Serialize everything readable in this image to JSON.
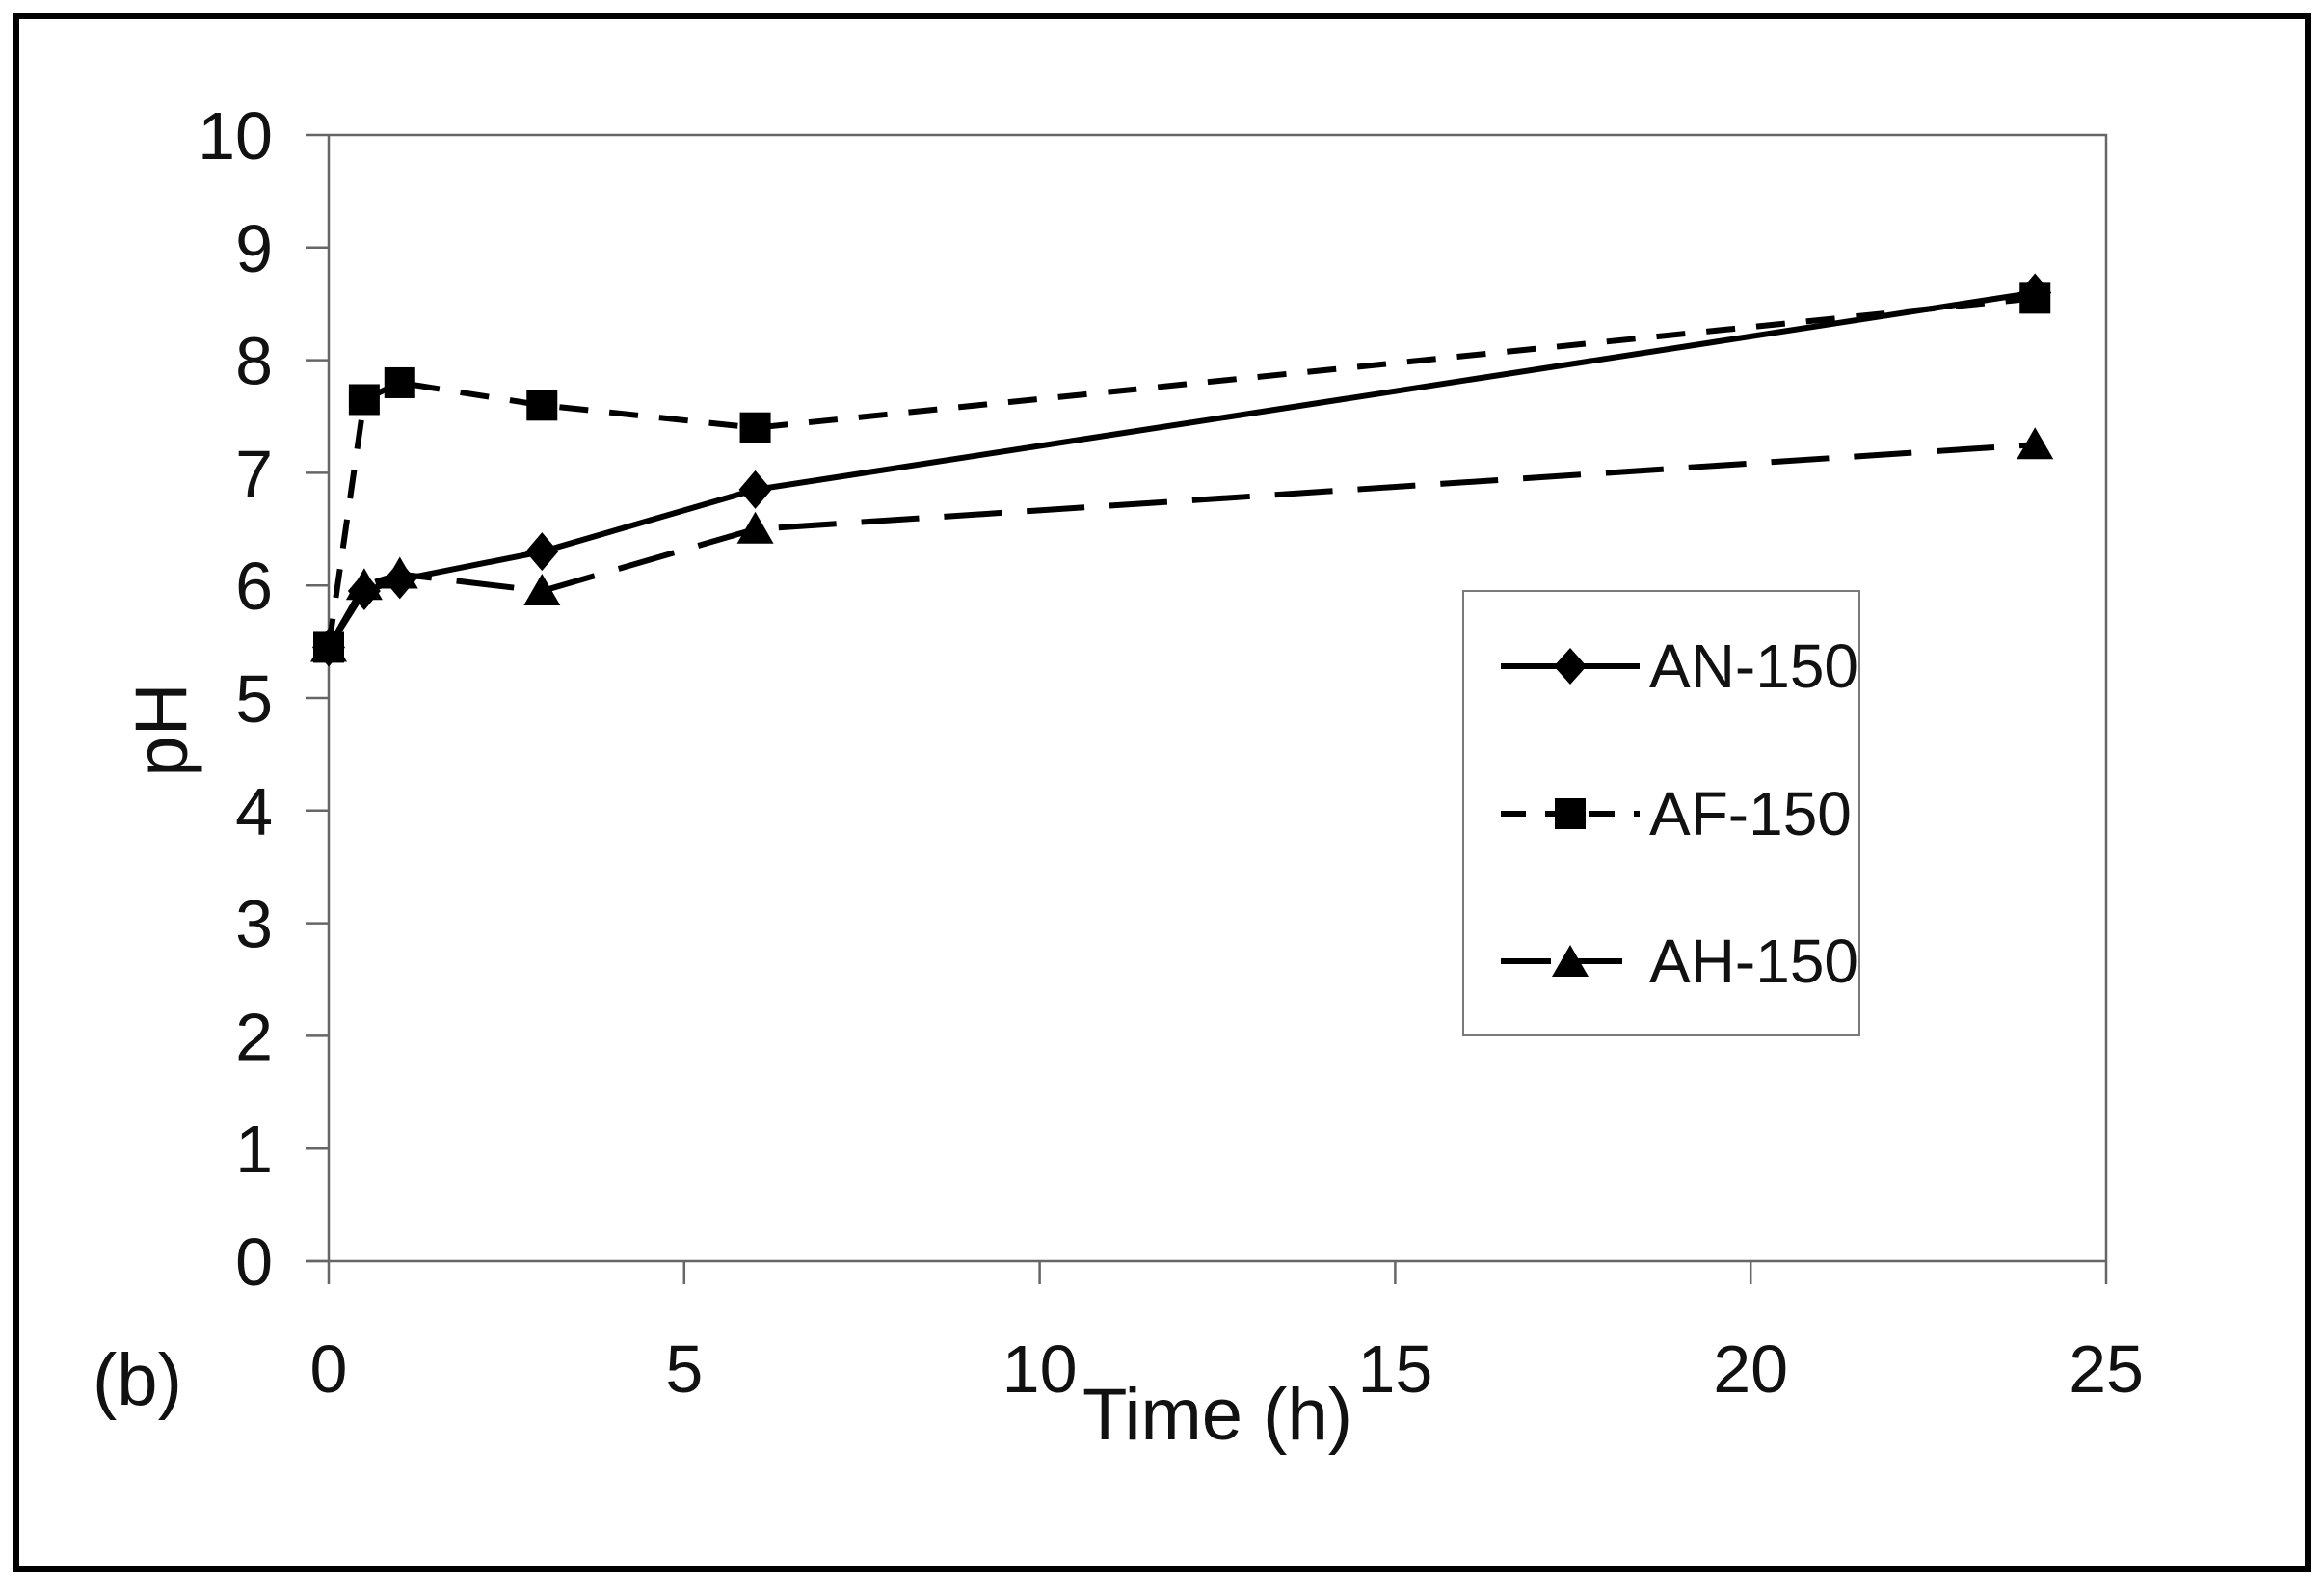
{
  "figure": {
    "panel_label": "(b)",
    "background_color": "#ffffff",
    "border_color": "#000000"
  },
  "chart_data": {
    "type": "line",
    "title": "",
    "xlabel": "Time (h)",
    "ylabel": "pH",
    "xlim": [
      0,
      25
    ],
    "ylim": [
      0,
      10
    ],
    "x_ticks": [
      0,
      5,
      10,
      15,
      20,
      25
    ],
    "y_ticks": [
      0,
      1,
      2,
      3,
      4,
      5,
      6,
      7,
      8,
      9,
      10
    ],
    "grid": false,
    "legend_position": "center-right",
    "axis_color": "#666666",
    "series_color": "#000000",
    "x": [
      0,
      0.5,
      1,
      3,
      6,
      24
    ],
    "series": [
      {
        "name": "AN-150",
        "marker": "diamond",
        "line_style": "solid",
        "values": [
          5.45,
          5.95,
          6.05,
          6.3,
          6.85,
          8.6
        ]
      },
      {
        "name": "AF-150",
        "marker": "square",
        "line_style": "short-dash",
        "values": [
          5.45,
          7.65,
          7.8,
          7.6,
          7.4,
          8.55
        ]
      },
      {
        "name": "AH-150",
        "marker": "triangle",
        "line_style": "long-dash",
        "values": [
          5.45,
          6.0,
          6.1,
          5.95,
          6.5,
          7.25
        ]
      }
    ]
  }
}
